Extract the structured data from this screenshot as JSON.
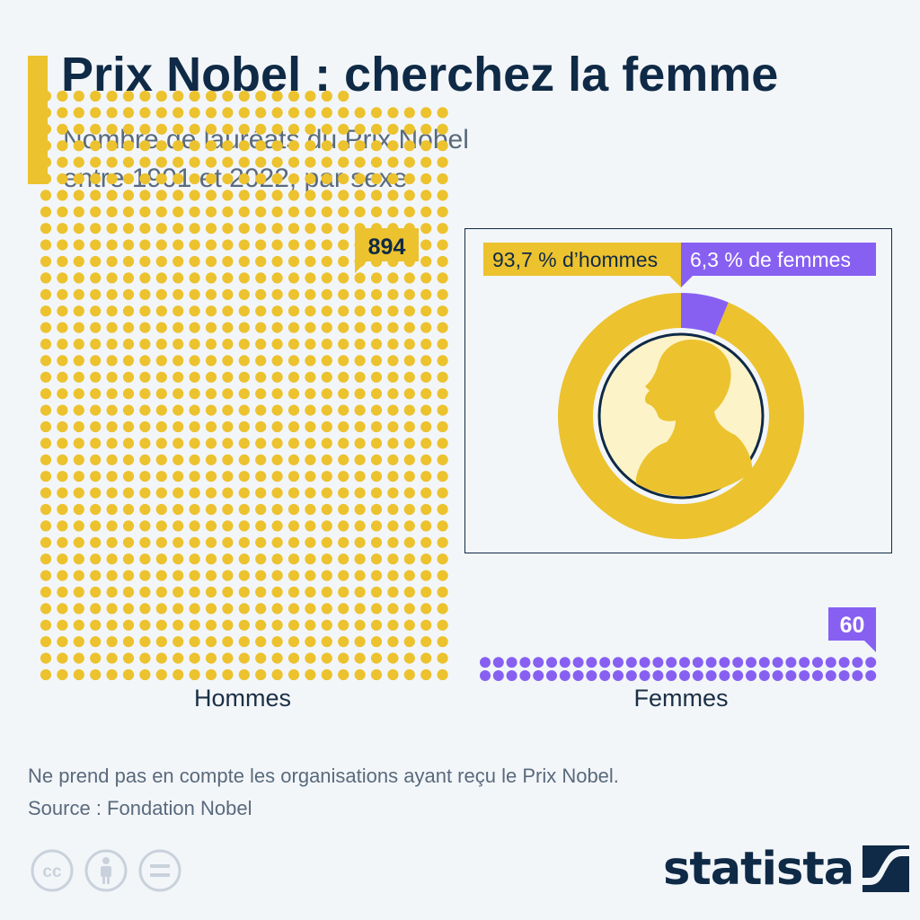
{
  "title": "Prix Nobel : cherchez la femme",
  "subtitle_line1": "Nombre de lauréats du Prix Nobel",
  "subtitle_line2": "entre 1901 et 2022, par sexe",
  "colors": {
    "men": "#ecc22e",
    "women": "#8760f2",
    "navy": "#0f2a46",
    "background": "#f3f6f9",
    "medal_inner": "#fcf3c8"
  },
  "chart_data": [
    {
      "type": "waffle",
      "categories": [
        "Hommes",
        "Femmes"
      ],
      "values": [
        894,
        60
      ],
      "value_labels": [
        "894",
        "60"
      ]
    },
    {
      "type": "pie",
      "style": "donut",
      "categories": [
        "d'hommes",
        "de femmes"
      ],
      "values": [
        93.7,
        6.3
      ],
      "labels": [
        "93,7 % d’hommes",
        "6,3 % de femmes"
      ],
      "center_icon": "nobel-medal-portrait-icon"
    }
  ],
  "note": "Ne prend pas en compte les organisations ayant reçu le Prix Nobel.",
  "source": "Source : Fondation Nobel",
  "license_icons": [
    "cc-icon",
    "attribution-icon",
    "no-derivatives-icon"
  ],
  "logo": "statista"
}
